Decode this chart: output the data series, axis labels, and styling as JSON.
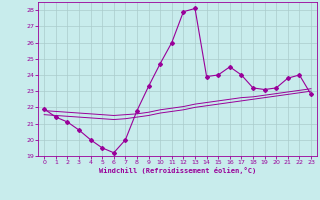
{
  "xlabel": "Windchill (Refroidissement éolien,°C)",
  "background_color": "#c8ecec",
  "line_color": "#990099",
  "grid_color": "#aacccc",
  "x_values": [
    0,
    1,
    2,
    3,
    4,
    5,
    6,
    7,
    8,
    9,
    10,
    11,
    12,
    13,
    14,
    15,
    16,
    17,
    18,
    19,
    20,
    21,
    22,
    23
  ],
  "y_main": [
    21.9,
    21.4,
    21.1,
    20.6,
    20.0,
    19.5,
    19.2,
    20.0,
    21.8,
    23.3,
    24.7,
    26.0,
    27.9,
    28.1,
    23.9,
    24.0,
    24.5,
    24.0,
    23.2,
    23.1,
    23.2,
    23.8,
    24.0,
    22.8
  ],
  "y_line1": [
    21.8,
    21.75,
    21.7,
    21.65,
    21.6,
    21.55,
    21.5,
    21.55,
    21.6,
    21.7,
    21.85,
    21.95,
    22.05,
    22.2,
    22.3,
    22.4,
    22.5,
    22.6,
    22.65,
    22.75,
    22.85,
    22.95,
    23.05,
    23.15
  ],
  "y_line2": [
    21.55,
    21.5,
    21.45,
    21.4,
    21.35,
    21.3,
    21.25,
    21.3,
    21.4,
    21.5,
    21.65,
    21.75,
    21.85,
    22.0,
    22.1,
    22.2,
    22.3,
    22.4,
    22.5,
    22.6,
    22.7,
    22.8,
    22.9,
    23.0
  ],
  "ylim": [
    19,
    28.5
  ],
  "xlim": [
    -0.5,
    23.5
  ],
  "yticks": [
    19,
    20,
    21,
    22,
    23,
    24,
    25,
    26,
    27,
    28
  ],
  "xticks": [
    0,
    1,
    2,
    3,
    4,
    5,
    6,
    7,
    8,
    9,
    10,
    11,
    12,
    13,
    14,
    15,
    16,
    17,
    18,
    19,
    20,
    21,
    22,
    23
  ]
}
